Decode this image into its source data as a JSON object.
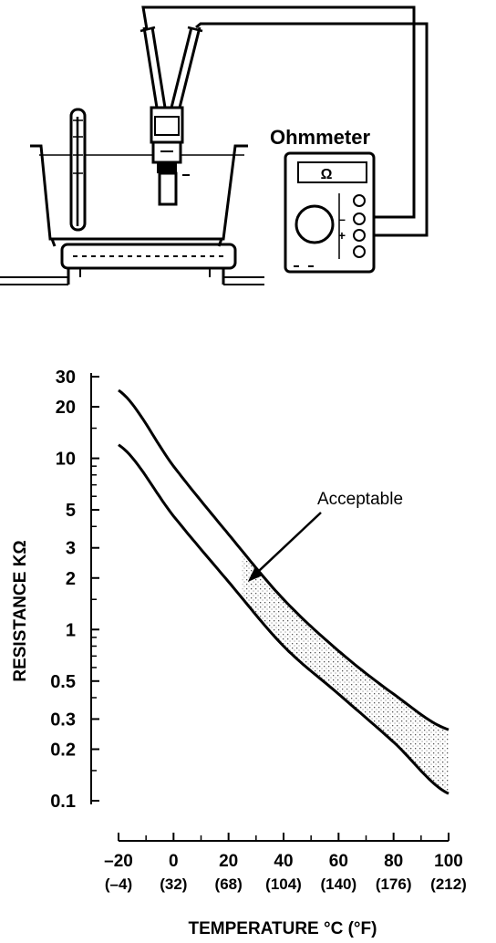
{
  "illustration": {
    "meter_label": "Ohmmeter",
    "meter_display": "Ω",
    "minus_sign": "–",
    "plus_sign": "+"
  },
  "chart_data": {
    "type": "line",
    "title": "",
    "xlabel": "TEMPERATURE °C (°F)",
    "ylabel": "RESISTANCE KΩ",
    "y_scale": "log",
    "xlim": [
      -20,
      100
    ],
    "ylim": [
      0.1,
      30
    ],
    "x_ticks": [
      -20,
      0,
      20,
      40,
      60,
      80,
      100
    ],
    "x_tick_labels": [
      "–20",
      "0",
      "20",
      "40",
      "60",
      "80",
      "100"
    ],
    "x_tick_labels_secondary": [
      "(–4)",
      "(32)",
      "(68)",
      "(104)",
      "(140)",
      "(176)",
      "(212)"
    ],
    "y_ticks": [
      30,
      20,
      10,
      5,
      3,
      2,
      1,
      0.5,
      0.3,
      0.2,
      0.1
    ],
    "y_tick_labels": [
      "30",
      "20",
      "10",
      "5",
      "3",
      "2",
      "1",
      "0.5",
      "0.3",
      "0.2",
      "0.1"
    ],
    "series": [
      {
        "x": [
          -20,
          0,
          20,
          40,
          60,
          80,
          100
        ],
        "values": [
          25,
          9,
          3.6,
          1.5,
          0.75,
          0.42,
          0.26
        ]
      },
      {
        "x": [
          -20,
          0,
          20,
          40,
          60,
          80,
          100
        ],
        "values": [
          12,
          4.6,
          1.9,
          0.8,
          0.42,
          0.22,
          0.11
        ]
      }
    ],
    "shaded_band": {
      "label": "Acceptable",
      "between_series": [
        0,
        1
      ],
      "x_from": 25,
      "x_to": 100
    },
    "annotations": [
      {
        "text": "Acceptable",
        "points_to": {
          "x": 27,
          "y": 1.9
        }
      }
    ]
  }
}
